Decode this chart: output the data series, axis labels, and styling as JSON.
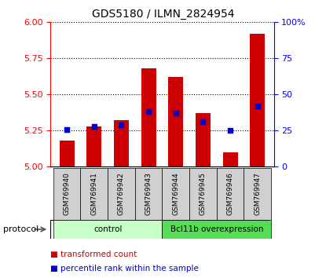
{
  "title": "GDS5180 / ILMN_2824954",
  "samples": [
    "GSM769940",
    "GSM769941",
    "GSM769942",
    "GSM769943",
    "GSM769944",
    "GSM769945",
    "GSM769946",
    "GSM769947"
  ],
  "transformed_counts": [
    5.18,
    5.28,
    5.32,
    5.68,
    5.62,
    5.37,
    5.1,
    5.92
  ],
  "percentile_ranks": [
    26,
    28,
    29,
    38,
    37,
    31,
    25,
    42
  ],
  "groups": [
    {
      "label": "control",
      "start": 0,
      "end": 4,
      "color_light": "#c8ffc8",
      "color_dark": "#c8ffc8"
    },
    {
      "label": "Bcl11b overexpression",
      "start": 4,
      "end": 8,
      "color_light": "#55dd55",
      "color_dark": "#55dd55"
    }
  ],
  "ylim_left": [
    5.0,
    6.0
  ],
  "ylim_right": [
    0,
    100
  ],
  "yticks_left": [
    5.0,
    5.25,
    5.5,
    5.75,
    6.0
  ],
  "yticks_right": [
    0,
    25,
    50,
    75,
    100
  ],
  "bar_color": "#cc0000",
  "dot_color": "#0000cc",
  "bar_bottom": 5.0,
  "legend_items": [
    {
      "label": "transformed count",
      "color": "#cc0000"
    },
    {
      "label": "percentile rank within the sample",
      "color": "#0000cc"
    }
  ]
}
